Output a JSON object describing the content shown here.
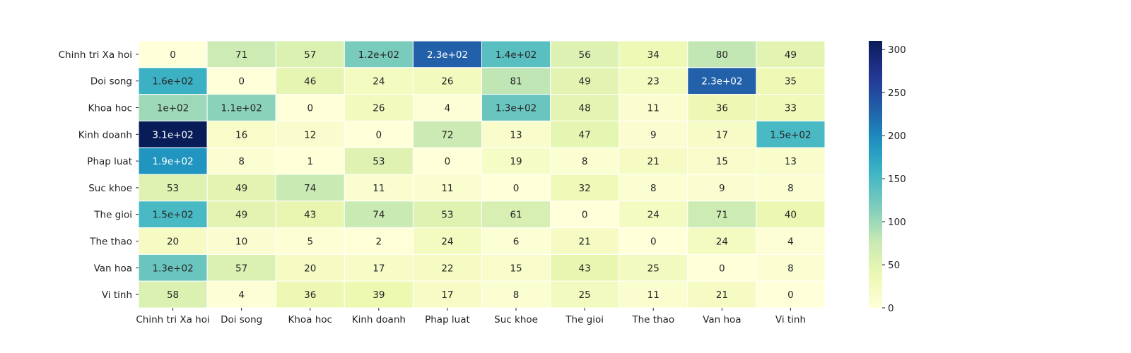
{
  "chart_data": {
    "type": "heatmap",
    "title": "",
    "xlabel": "",
    "ylabel": "",
    "x_categories": [
      "Chinh tri Xa hoi",
      "Doi song",
      "Khoa hoc",
      "Kinh doanh",
      "Phap luat",
      "Suc khoe",
      "The gioi",
      "The thao",
      "Van hoa",
      "Vi tinh"
    ],
    "y_categories": [
      "Chinh tri Xa hoi",
      "Doi song",
      "Khoa hoc",
      "Kinh doanh",
      "Phap luat",
      "Suc khoe",
      "The gioi",
      "The thao",
      "Van hoa",
      "Vi tinh"
    ],
    "values": [
      [
        0,
        71,
        57,
        120,
        230,
        140,
        56,
        34,
        80,
        49
      ],
      [
        160,
        0,
        46,
        24,
        26,
        81,
        49,
        23,
        230,
        35
      ],
      [
        100,
        110,
        0,
        26,
        4,
        130,
        48,
        11,
        36,
        33
      ],
      [
        310,
        16,
        12,
        0,
        72,
        13,
        47,
        9,
        17,
        150
      ],
      [
        190,
        8,
        1,
        53,
        0,
        19,
        8,
        21,
        15,
        13
      ],
      [
        53,
        49,
        74,
        11,
        11,
        0,
        32,
        8,
        9,
        8
      ],
      [
        150,
        49,
        43,
        74,
        53,
        61,
        0,
        24,
        71,
        40
      ],
      [
        20,
        10,
        5,
        2,
        24,
        6,
        21,
        0,
        24,
        4
      ],
      [
        130,
        57,
        20,
        17,
        22,
        15,
        43,
        25,
        0,
        8
      ],
      [
        58,
        4,
        36,
        39,
        17,
        8,
        25,
        11,
        21,
        0
      ]
    ],
    "labels": [
      [
        "0",
        "71",
        "57",
        "1.2e+02",
        "2.3e+02",
        "1.4e+02",
        "56",
        "34",
        "80",
        "49"
      ],
      [
        "1.6e+02",
        "0",
        "46",
        "24",
        "26",
        "81",
        "49",
        "23",
        "2.3e+02",
        "35"
      ],
      [
        "1e+02",
        "1.1e+02",
        "0",
        "26",
        "4",
        "1.3e+02",
        "48",
        "11",
        "36",
        "33"
      ],
      [
        "3.1e+02",
        "16",
        "12",
        "0",
        "72",
        "13",
        "47",
        "9",
        "17",
        "1.5e+02"
      ],
      [
        "1.9e+02",
        "8",
        "1",
        "53",
        "0",
        "19",
        "8",
        "21",
        "15",
        "13"
      ],
      [
        "53",
        "49",
        "74",
        "11",
        "11",
        "0",
        "32",
        "8",
        "9",
        "8"
      ],
      [
        "1.5e+02",
        "49",
        "43",
        "74",
        "53",
        "61",
        "0",
        "24",
        "71",
        "40"
      ],
      [
        "20",
        "10",
        "5",
        "2",
        "24",
        "6",
        "21",
        "0",
        "24",
        "4"
      ],
      [
        "1.3e+02",
        "57",
        "20",
        "17",
        "22",
        "15",
        "43",
        "25",
        "0",
        "8"
      ],
      [
        "58",
        "4",
        "36",
        "39",
        "17",
        "8",
        "25",
        "11",
        "21",
        "0"
      ]
    ],
    "colormap": "YlGnBu",
    "colorbar": {
      "range": [
        0,
        310
      ],
      "ticks": [
        0,
        50,
        100,
        150,
        200,
        250,
        300
      ]
    },
    "grid": false,
    "legend": "colorbar-right"
  }
}
